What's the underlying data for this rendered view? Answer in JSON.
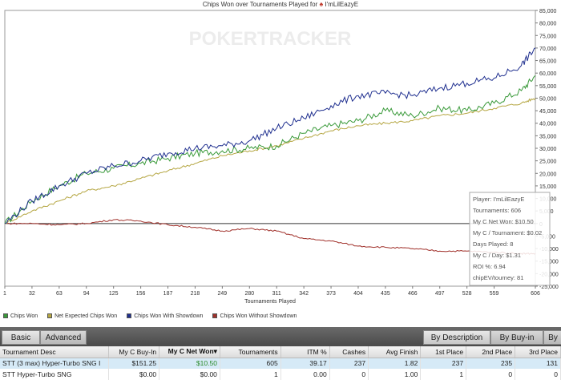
{
  "chart": {
    "title": "Chips Won over Tournaments Played for",
    "player_name": "I'mLilEazyE",
    "watermark": "POKERTRACKER",
    "xlabel": "Tournaments Played",
    "y_ticks": [
      "85,000",
      "80,000",
      "75,000",
      "70,000",
      "65,000",
      "60,000",
      "55,000",
      "50,000",
      "45,000",
      "40,000",
      "35,000",
      "30,000",
      "25,000",
      "20,000",
      "15,000",
      "10,000",
      "5,000",
      "0",
      "-5,000",
      "-10,000",
      "-15,000",
      "-20,000",
      "-25,000"
    ],
    "x_ticks": [
      "1",
      "32",
      "63",
      "94",
      "125",
      "156",
      "187",
      "218",
      "249",
      "280",
      "311",
      "342",
      "373",
      "404",
      "435",
      "466",
      "497",
      "528",
      "559",
      "606"
    ],
    "legend": [
      "Chips Won",
      "Net Expected Chips Won",
      "Chips Won With Showdown",
      "Chips Won Without Showdown"
    ],
    "colors": {
      "chips_won": "#3a9a3a",
      "expected": "#b5a642",
      "showdown": "#1f2f8f",
      "no_showdown": "#a0302a"
    },
    "tooltip": [
      "Player: I'mLilEazyE",
      "Tournaments: 606",
      "My C Net Won: $10.50",
      "My C / Tournament: $0.02",
      "Days Played: 8",
      "My C / Day: $1.31",
      "ROI %: 6.94",
      "chipEV/tourney: 81"
    ]
  },
  "chart_data": {
    "type": "line",
    "title": "Chips Won over Tournaments Played for I'mLilEazyE",
    "xlabel": "Tournaments Played",
    "ylabel": "",
    "xlim": [
      1,
      606
    ],
    "ylim": [
      -25000,
      85000
    ],
    "series": [
      {
        "name": "Chips Won",
        "x": [
          1,
          32,
          63,
          94,
          125,
          156,
          187,
          218,
          249,
          280,
          311,
          342,
          373,
          404,
          435,
          466,
          497,
          528,
          559,
          590,
          606
        ],
        "values": [
          0,
          9000,
          15000,
          20000,
          22000,
          24000,
          26000,
          28000,
          29000,
          30000,
          31000,
          36000,
          39000,
          41000,
          45000,
          43000,
          46000,
          45000,
          48000,
          53000,
          59000
        ]
      },
      {
        "name": "Net Expected Chips Won",
        "x": [
          1,
          32,
          63,
          94,
          125,
          156,
          187,
          218,
          249,
          280,
          311,
          342,
          373,
          404,
          435,
          466,
          497,
          528,
          559,
          590,
          606
        ],
        "values": [
          0,
          5000,
          9000,
          13000,
          15000,
          18000,
          21000,
          24000,
          27000,
          29000,
          31000,
          34000,
          37000,
          39000,
          40000,
          41000,
          43000,
          44000,
          46000,
          48000,
          50000
        ]
      },
      {
        "name": "Chips Won With Showdown",
        "x": [
          1,
          32,
          63,
          94,
          125,
          156,
          187,
          218,
          249,
          280,
          311,
          342,
          373,
          404,
          435,
          466,
          497,
          528,
          559,
          590,
          606
        ],
        "values": [
          0,
          9000,
          15000,
          20000,
          23000,
          25000,
          28000,
          30000,
          31000,
          33000,
          38000,
          42000,
          47000,
          51000,
          52000,
          51000,
          54000,
          56000,
          58000,
          63000,
          70000
        ]
      },
      {
        "name": "Chips Won Without Showdown",
        "x": [
          1,
          32,
          63,
          94,
          125,
          156,
          187,
          218,
          249,
          280,
          311,
          342,
          373,
          404,
          435,
          466,
          497,
          528,
          559,
          590,
          606
        ],
        "values": [
          0,
          0,
          -500,
          0,
          1500,
          1000,
          -500,
          -1500,
          -3000,
          -2000,
          -3000,
          -6000,
          -7000,
          -9000,
          -9500,
          -10000,
          -11000,
          -11000,
          -11500,
          -12000,
          -12000
        ]
      }
    ]
  },
  "tabs": {
    "basic": "Basic",
    "advanced": "Advanced",
    "by_description": "By Description",
    "by_buyin": "By Buy-in",
    "by_next": "By"
  },
  "table": {
    "headers": [
      "Tournament Desc",
      "My C Buy-In",
      "My C Net Won",
      "Tournaments",
      "ITM %",
      "Cashes",
      "Avg Finish",
      "1st Place",
      "2nd Place",
      "3rd Place"
    ],
    "rows": [
      [
        "STT (3 max) Hyper-Turbo SNG I",
        "$151.25",
        "$10.50",
        "605",
        "39.17",
        "237",
        "1.82",
        "237",
        "235",
        "131"
      ],
      [
        "STT Hyper-Turbo SNG",
        "$0.00",
        "$0.00",
        "1",
        "0.00",
        "0",
        "1.00",
        "1",
        "0",
        "0"
      ]
    ]
  }
}
